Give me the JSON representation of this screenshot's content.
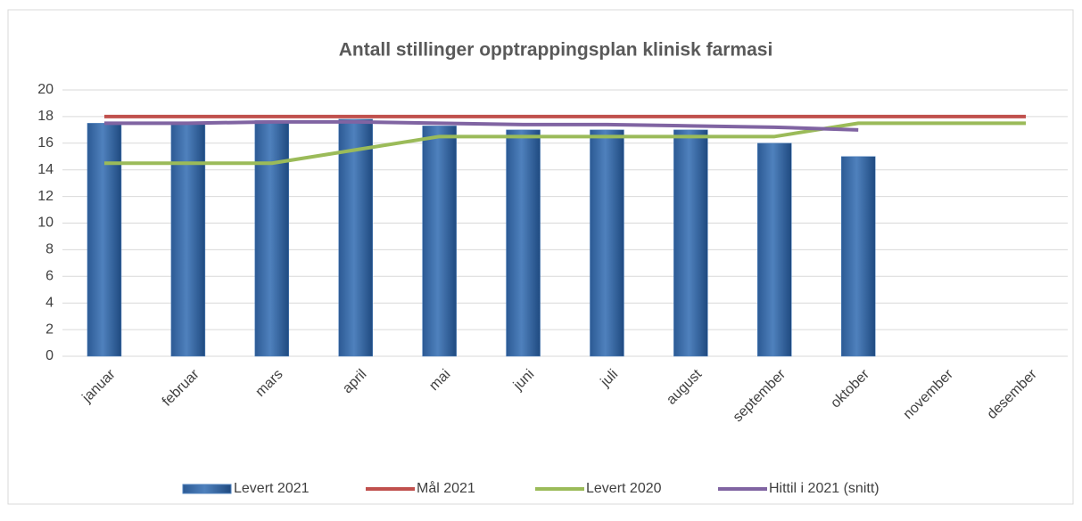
{
  "chart_data": {
    "type": "bar",
    "title": "Antall stillinger opptrappingsplan klinisk farmasi",
    "categories": [
      "januar",
      "februar",
      "mars",
      "april",
      "mai",
      "juni",
      "juli",
      "august",
      "september",
      "oktober",
      "november",
      "desember"
    ],
    "series": [
      {
        "name": "Levert 2021",
        "type": "bar",
        "color": "#4f81bd",
        "values": [
          17.5,
          17.5,
          17.7,
          17.8,
          17.3,
          17,
          17,
          17,
          16,
          15,
          null,
          null
        ]
      },
      {
        "name": "Mål 2021",
        "type": "line",
        "color": "#c0504d",
        "values": [
          18,
          18,
          18,
          18,
          18,
          18,
          18,
          18,
          18,
          18,
          18,
          18
        ]
      },
      {
        "name": "Levert 2020",
        "type": "line",
        "color": "#9bbb59",
        "values": [
          14.5,
          14.5,
          14.5,
          15.5,
          16.5,
          16.5,
          16.5,
          16.5,
          16.5,
          17.5,
          17.5,
          17.5
        ]
      },
      {
        "name": "Hittil i 2021 (snitt)",
        "type": "line",
        "color": "#8064a2",
        "values": [
          17.5,
          17.5,
          17.6,
          17.6,
          17.5,
          17.4,
          17.4,
          17.3,
          17.2,
          17.0,
          null,
          null
        ]
      }
    ],
    "ylim": [
      0,
      20
    ],
    "yticks": [
      0,
      2,
      4,
      6,
      8,
      10,
      12,
      14,
      16,
      18,
      20
    ],
    "grid": true,
    "legend": "bottom"
  }
}
